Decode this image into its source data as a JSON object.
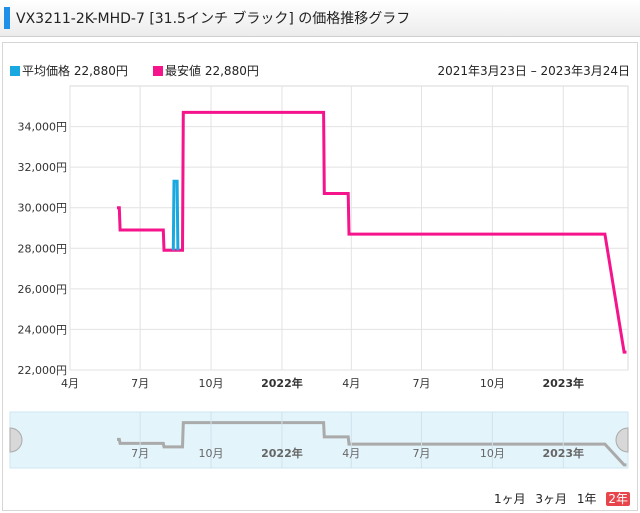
{
  "header": {
    "title": "VX3211-2K-MHD-7 [31.5インチ ブラック] の価格推移グラフ"
  },
  "legend": {
    "avg_label": "平均価格",
    "avg_value": "22,880円",
    "min_label": "最安値",
    "min_value": "22,880円",
    "date_range": "2021年3月23日 – 2023年3月24日"
  },
  "buttons": {
    "m1": "1ヶ月",
    "m3": "3ヶ月",
    "y1": "1年",
    "y2": "2年"
  },
  "colors": {
    "avg": "#19a9e0",
    "min": "#f5148c",
    "navigator": "#aaaaaa",
    "navigator_bg": "#e3f4fb"
  },
  "chart_data": {
    "type": "line",
    "title": "",
    "ylim": [
      22000,
      36000
    ],
    "y_ticks": [
      "22,000円",
      "24,000円",
      "26,000円",
      "28,000円",
      "30,000円",
      "32,000円",
      "34,000円"
    ],
    "x_ticks": [
      "4月",
      "7月",
      "10月",
      "2022年",
      "4月",
      "7月",
      "10月",
      "2023年"
    ],
    "navigator_ticks": [
      "7月",
      "10月",
      "2022年",
      "4月",
      "7月",
      "10月",
      "2023年"
    ],
    "series": [
      {
        "name": "平均価格",
        "color": "#19a9e0",
        "points": [
          [
            "2021-08-13",
            27900
          ],
          [
            "2021-08-14",
            31300
          ],
          [
            "2021-08-18",
            31300
          ],
          [
            "2021-08-19",
            27900
          ]
        ]
      },
      {
        "name": "最安値",
        "color": "#f5148c",
        "points": [
          [
            "2021-06-01",
            30000
          ],
          [
            "2021-06-04",
            30000
          ],
          [
            "2021-06-05",
            28900
          ],
          [
            "2021-07-31",
            28900
          ],
          [
            "2021-08-01",
            27900
          ],
          [
            "2021-08-25",
            27900
          ],
          [
            "2021-08-26",
            34700
          ],
          [
            "2022-02-24",
            34700
          ],
          [
            "2022-02-25",
            30700
          ],
          [
            "2022-03-28",
            30700
          ],
          [
            "2022-03-29",
            28700
          ],
          [
            "2023-02-24",
            28700
          ],
          [
            "2023-03-21",
            22880
          ],
          [
            "2023-03-24",
            22880
          ]
        ]
      }
    ]
  }
}
